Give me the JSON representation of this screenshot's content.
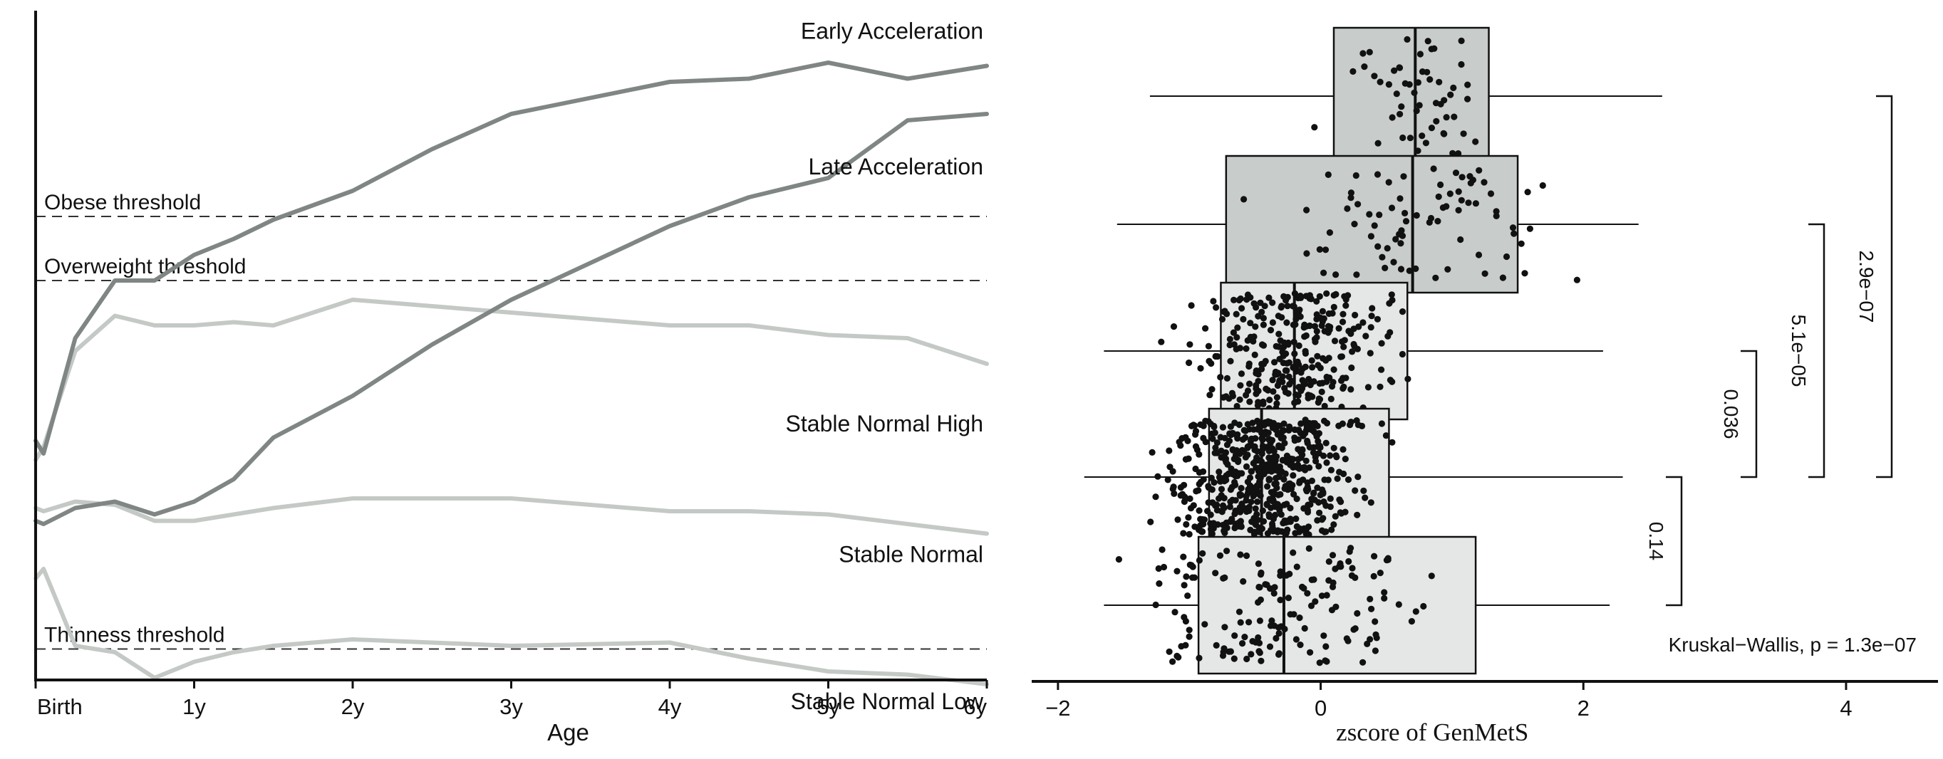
{
  "chart_data": [
    {
      "type": "line",
      "xlabel": "Age",
      "x_ticks": [
        "Birth",
        "1y",
        "2y",
        "3y",
        "4y",
        "5y",
        "6y"
      ],
      "x_tick_values": [
        0,
        1,
        2,
        3,
        4,
        5,
        6
      ],
      "xlim": [
        0,
        6
      ],
      "colors": {
        "dark": "#7f8684",
        "light": "#c4c9c6",
        "threshold": "#333333",
        "axis": "#111111"
      },
      "thresholds": [
        {
          "label": "Obese threshold",
          "y": 6.9
        },
        {
          "label": "Overweight threshold",
          "y": 5.9
        },
        {
          "label": "Thinness threshold",
          "y": 0.15
        }
      ],
      "series": [
        {
          "name": "Early Acceleration",
          "shade": "dark",
          "x": [
            0,
            0.05,
            0.25,
            0.5,
            0.75,
            1,
            1.25,
            1.5,
            2,
            2.5,
            3,
            4,
            4.5,
            5,
            5.5,
            6
          ],
          "y": [
            3.4,
            3.2,
            5.0,
            5.9,
            5.9,
            6.3,
            6.55,
            6.85,
            7.3,
            7.95,
            8.5,
            9.0,
            9.05,
            9.3,
            9.05,
            9.25
          ]
        },
        {
          "name": "Late Acceleration",
          "shade": "dark",
          "x": [
            0,
            0.05,
            0.25,
            0.5,
            0.75,
            1,
            1.25,
            1.5,
            2,
            2.5,
            3,
            4,
            4.5,
            5,
            5.5,
            6
          ],
          "y": [
            2.15,
            2.1,
            2.35,
            2.45,
            2.25,
            2.45,
            2.8,
            3.45,
            4.1,
            4.9,
            5.6,
            6.75,
            7.2,
            7.5,
            8.4,
            8.5
          ]
        },
        {
          "name": "Stable Normal High",
          "shade": "light",
          "x": [
            0,
            0.05,
            0.25,
            0.5,
            0.75,
            1,
            1.25,
            1.5,
            2,
            2.5,
            3,
            4,
            4.5,
            5,
            5.5,
            6
          ],
          "y": [
            3.1,
            3.3,
            4.8,
            5.35,
            5.2,
            5.2,
            5.25,
            5.2,
            5.6,
            5.5,
            5.4,
            5.2,
            5.2,
            5.05,
            5.0,
            4.6
          ]
        },
        {
          "name": "Stable Normal",
          "shade": "light",
          "x": [
            0,
            0.05,
            0.25,
            0.5,
            0.75,
            1,
            1.25,
            1.5,
            2,
            2.5,
            3,
            4,
            4.5,
            5,
            5.5,
            6
          ],
          "y": [
            2.35,
            2.3,
            2.45,
            2.4,
            2.15,
            2.15,
            2.25,
            2.35,
            2.5,
            2.5,
            2.5,
            2.3,
            2.3,
            2.25,
            2.1,
            1.95
          ]
        },
        {
          "name": "Stable Normal Low",
          "shade": "light",
          "x": [
            0,
            0.05,
            0.25,
            0.5,
            0.75,
            1,
            1.25,
            1.5,
            2,
            2.5,
            3,
            4,
            4.5,
            5,
            5.5,
            6
          ],
          "y": [
            1.25,
            1.4,
            0.2,
            0.1,
            -0.3,
            -0.05,
            0.1,
            0.2,
            0.3,
            0.25,
            0.2,
            0.25,
            0.0,
            -0.2,
            -0.25,
            -0.4
          ]
        }
      ]
    },
    {
      "type": "box",
      "xlabel": "zscore of GenMetS",
      "xlim": [
        -2.2,
        4.7
      ],
      "x_ticks": [
        "−2",
        "0",
        "2",
        "4"
      ],
      "x_tick_values": [
        -2,
        0,
        2,
        4
      ],
      "colors": {
        "box_dark": "#c8ccca",
        "box_light": "#e5e7e6",
        "stroke": "#111111",
        "point": "#111111"
      },
      "groups": [
        {
          "name": "Early Acceleration",
          "fill": "box_dark",
          "whisker_low": -1.3,
          "q1": 0.1,
          "median": 0.72,
          "q3": 1.28,
          "whisker_high": 2.6,
          "n_points": 55
        },
        {
          "name": "Late Acceleration",
          "fill": "box_dark",
          "whisker_low": -1.55,
          "q1": -0.72,
          "median": 0.7,
          "q3": 1.5,
          "whisker_high": 2.42,
          "n_points": 80
        },
        {
          "name": "Stable Normal High",
          "fill": "box_light",
          "whisker_low": -1.65,
          "q1": -0.76,
          "median": -0.2,
          "q3": 0.66,
          "whisker_high": 2.15,
          "n_points": 300
        },
        {
          "name": "Stable Normal",
          "fill": "box_light",
          "whisker_low": -1.8,
          "q1": -0.85,
          "median": -0.45,
          "q3": 0.52,
          "whisker_high": 2.3,
          "n_points": 560
        },
        {
          "name": "Stable Normal Low",
          "fill": "box_light",
          "whisker_low": -1.65,
          "q1": -0.93,
          "median": -0.28,
          "q3": 1.18,
          "whisker_high": 2.2,
          "n_points": 160
        }
      ],
      "comparisons": [
        {
          "label": "2.9e−07",
          "from_group": 0,
          "to_group": 3
        },
        {
          "label": "5.1e−05",
          "from_group": 1,
          "to_group": 3
        },
        {
          "label": "0.036",
          "from_group": 2,
          "to_group": 3
        },
        {
          "label": "0.14",
          "from_group": 3,
          "to_group": 4
        }
      ],
      "annotation": "Kruskal−Wallis, p = 1.3e−07"
    }
  ]
}
